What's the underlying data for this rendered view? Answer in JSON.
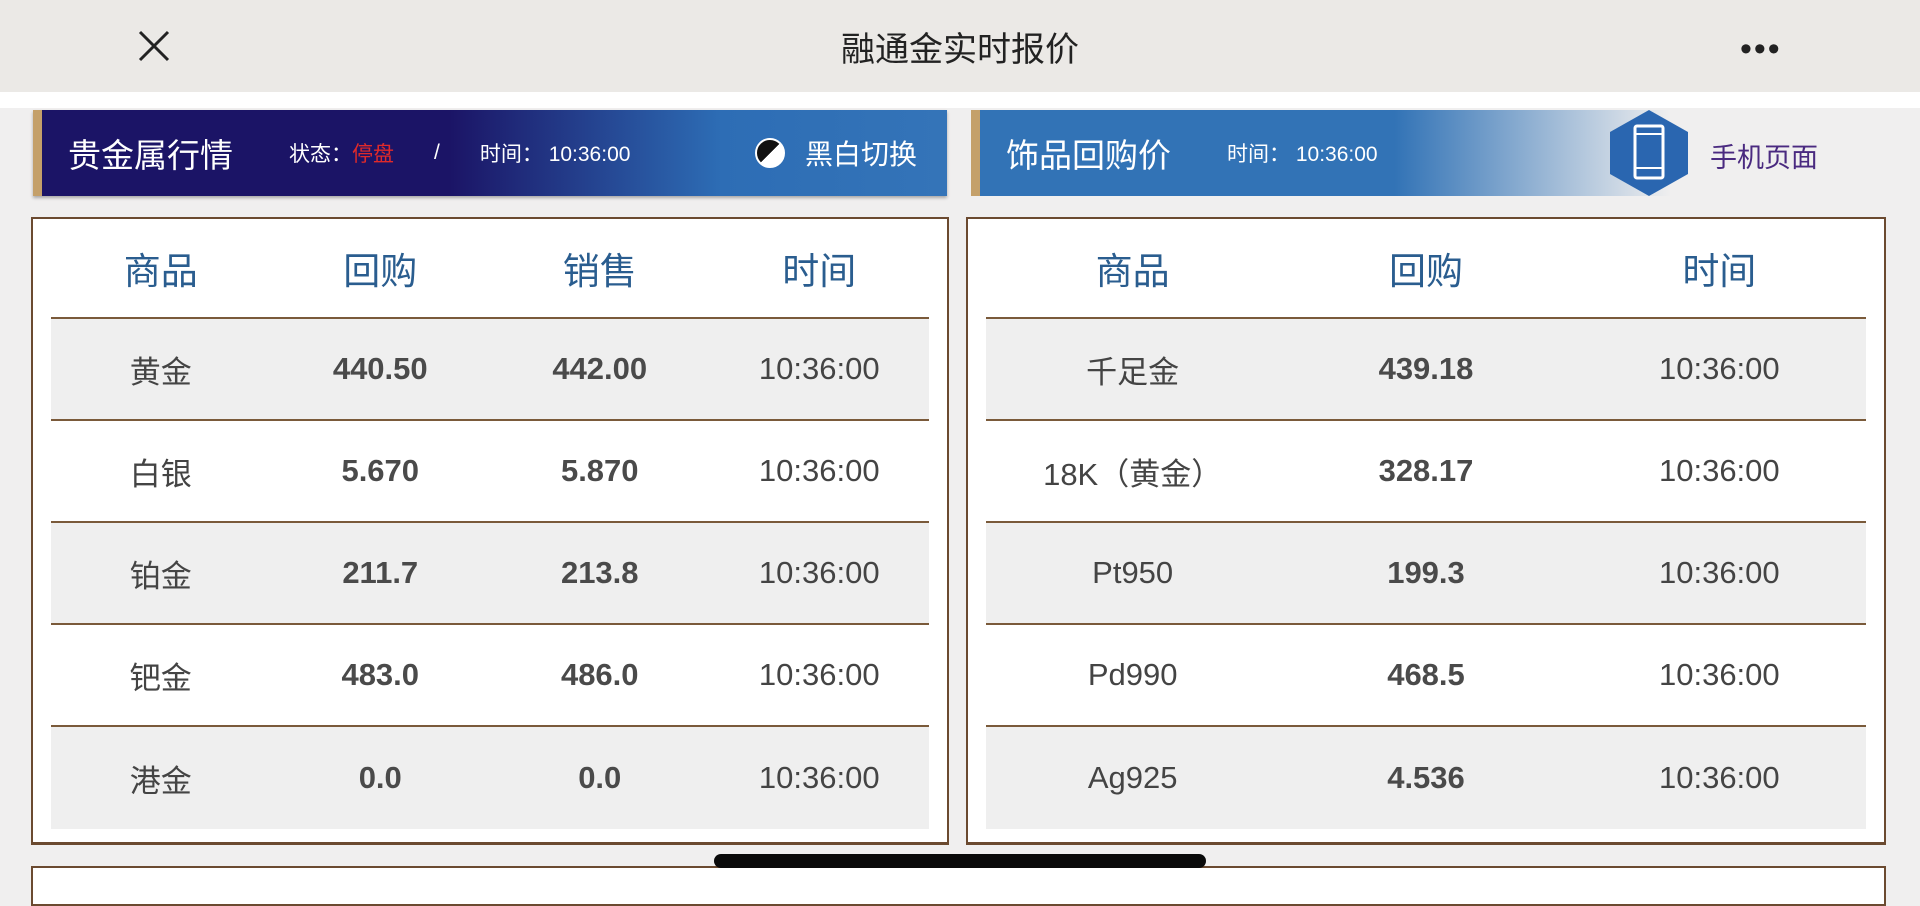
{
  "topbar": {
    "title": "融通金实时报价",
    "close_icon": "close-icon",
    "more_icon": "more-icon",
    "more": "•••"
  },
  "left_header": {
    "title": "贵金属行情",
    "status_label": "状态：",
    "status_value": "停盘",
    "separator": "/",
    "time_label": "时间：",
    "time_value": "10:36:00",
    "toggle_label": "黑白切换",
    "status_color": "#e02a2a"
  },
  "right_header": {
    "title": "饰品回购价",
    "time_label": "时间：",
    "time_value": "10:36:00",
    "mobile_label": "手机页面"
  },
  "left_table": {
    "columns": [
      "商品",
      "回购",
      "销售",
      "时间"
    ],
    "rows": [
      [
        "黄金",
        "440.50",
        "442.00",
        "10:36:00"
      ],
      [
        "白银",
        "5.670",
        "5.870",
        "10:36:00"
      ],
      [
        "铂金",
        "211.7",
        "213.8",
        "10:36:00"
      ],
      [
        "钯金",
        "483.0",
        "486.0",
        "10:36:00"
      ],
      [
        "港金",
        "0.0",
        "0.0",
        "10:36:00"
      ]
    ]
  },
  "right_table": {
    "columns": [
      "商品",
      "回购",
      "时间"
    ],
    "rows": [
      [
        "千足金",
        "439.18",
        "10:36:00"
      ],
      [
        "18K（黄金）",
        "328.17",
        "10:36:00"
      ],
      [
        "Pt950",
        "199.3",
        "10:36:00"
      ],
      [
        "Pd990",
        "468.5",
        "10:36:00"
      ],
      [
        "Ag925",
        "4.536",
        "10:36:00"
      ]
    ]
  },
  "colors": {
    "header_dark": "#1b1466",
    "header_blue": "#3273b6",
    "border": "#6b4a30",
    "accent_gold": "#c4a06a",
    "column_header": "#2a5d8f"
  }
}
